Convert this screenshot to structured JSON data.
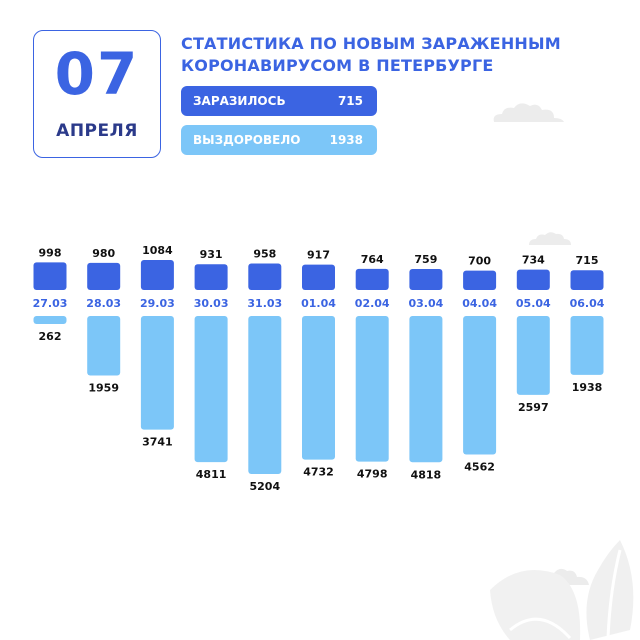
{
  "date": {
    "day": "07",
    "month": "АПРЕЛЯ"
  },
  "title": {
    "line1": "СТАТИСТИКА ПО НОВЫМ ЗАРАЖЕННЫМ",
    "line2": "КОРОНАВИРУСОМ В ПЕТЕРБУРГЕ"
  },
  "summary": {
    "infected_label": "ЗАРАЗИЛОСЬ",
    "infected_value": "715",
    "recovered_label": "ВЫЗДОРОВЕЛО",
    "recovered_value": "1938"
  },
  "colors": {
    "infected": "#3b64e2",
    "recovered": "#7cc6f8",
    "date_label": "#3b64e2",
    "value_text": "#111111"
  },
  "chart_data": {
    "type": "bar",
    "categories": [
      "27.03",
      "28.03",
      "29.03",
      "30.03",
      "31.03",
      "01.04",
      "02.04",
      "03.04",
      "04.04",
      "05.04",
      "06.04"
    ],
    "series": [
      {
        "name": "ЗАРАЗИЛОСЬ",
        "values": [
          998,
          980,
          1084,
          931,
          958,
          917,
          764,
          759,
          700,
          734,
          715
        ]
      },
      {
        "name": "ВЫЗДОРОВЕЛО",
        "values": [
          262,
          1959,
          3741,
          4811,
          5204,
          4732,
          4798,
          4818,
          4562,
          2597,
          1938
        ]
      }
    ]
  }
}
